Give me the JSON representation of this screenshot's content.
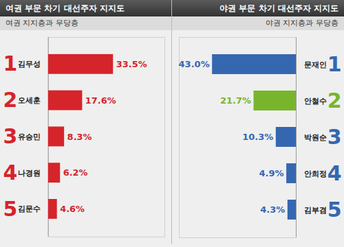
{
  "chart_data": [
    {
      "type": "bar",
      "title": "여권 부문 차기 대선주자 지지도",
      "subtitle": "여권 지지층과 무당층",
      "orientation": "horizontal",
      "data_labels": true,
      "tick_labels": false,
      "categories": [
        "김무성",
        "오세훈",
        "유승민",
        "나경원",
        "김문수"
      ],
      "ranks": [
        1,
        2,
        3,
        4,
        5
      ],
      "values": [
        33.5,
        17.6,
        8.3,
        6.2,
        4.6
      ],
      "value_labels": [
        "33.5%",
        "17.6%",
        "8.3%",
        "6.2%",
        "4.6%"
      ],
      "color": "#d6242b",
      "xlim": [
        0,
        60
      ]
    },
    {
      "type": "bar",
      "title": "야권 부문 차기 대선주자 지지도",
      "subtitle": "야권 지지층과 무당층",
      "orientation": "horizontal",
      "data_labels": true,
      "tick_labels": false,
      "categories": [
        "문재인",
        "안철수",
        "박원순",
        "안희정",
        "김부겸"
      ],
      "ranks": [
        1,
        2,
        3,
        4,
        5
      ],
      "values": [
        43.0,
        21.7,
        10.3,
        4.9,
        4.3
      ],
      "value_labels": [
        "43.0%",
        "21.7%",
        "10.3%",
        "4.9%",
        "4.3%"
      ],
      "colors": [
        "#3567b0",
        "#78b52c",
        "#3567b0",
        "#3567b0",
        "#3567b0"
      ],
      "xlim": [
        0,
        60
      ]
    }
  ]
}
